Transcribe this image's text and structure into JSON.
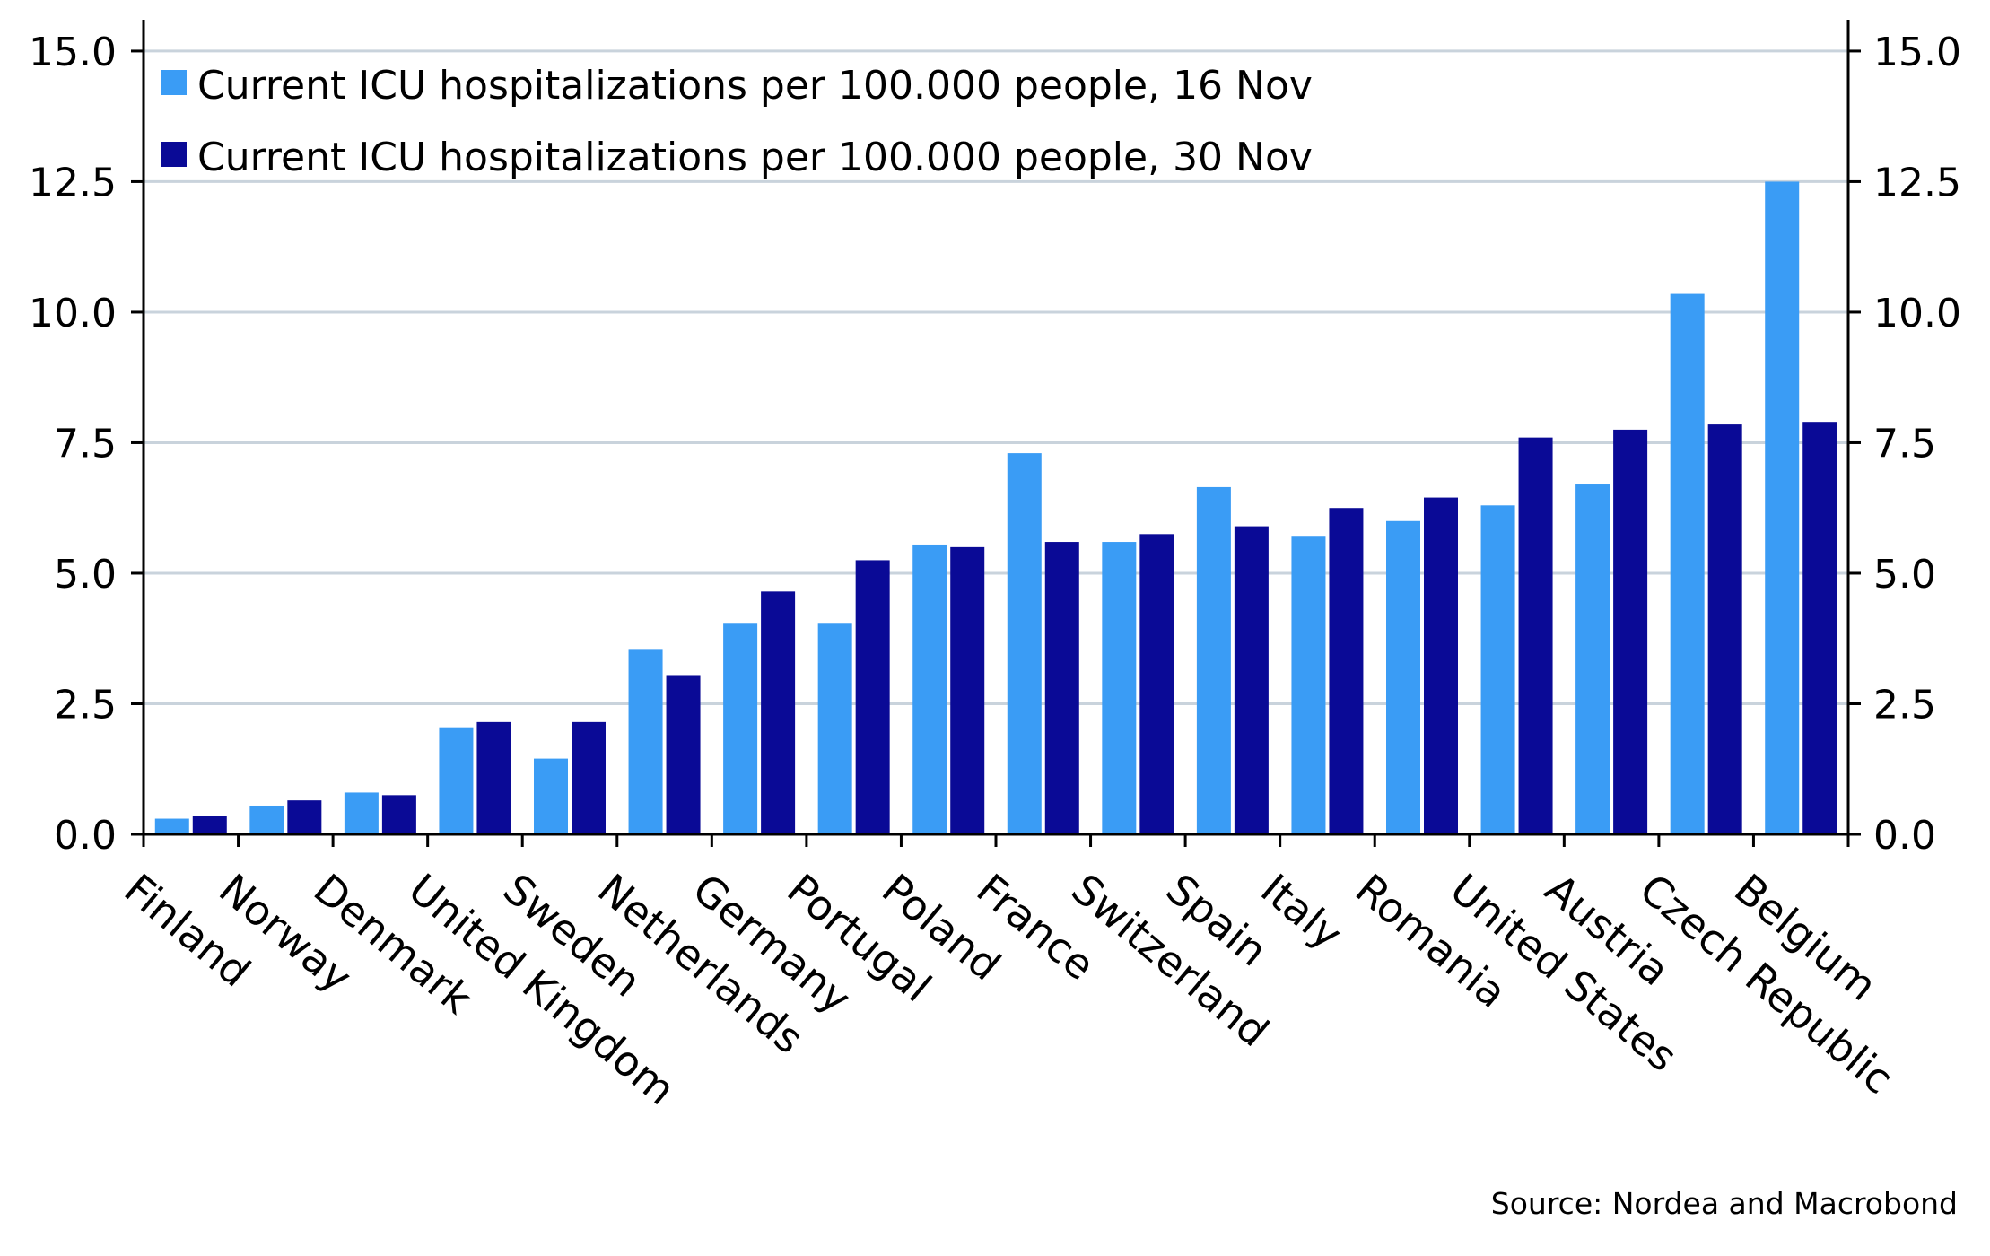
{
  "chart_data": {
    "type": "bar",
    "categories": [
      "Finland",
      "Norway",
      "Denmark",
      "United Kingdom",
      "Sweden",
      "Netherlands",
      "Germany",
      "Portugal",
      "Poland",
      "France",
      "Switzerland",
      "Spain",
      "Italy",
      "Romania",
      "United States",
      "Austria",
      "Czech Republic",
      "Belgium"
    ],
    "series": [
      {
        "name": "Current ICU hospitalizations per 100.000 people, 16 Nov",
        "color": "#3a9cf5",
        "values": [
          0.3,
          0.55,
          0.8,
          2.05,
          1.45,
          3.55,
          4.05,
          4.05,
          5.55,
          7.3,
          5.6,
          6.65,
          5.7,
          6.0,
          6.3,
          6.7,
          10.35,
          12.5
        ]
      },
      {
        "name": "Current ICU hospitalizations per 100.000 people, 30 Nov",
        "color": "#0a0a96",
        "values": [
          0.35,
          0.65,
          0.75,
          2.15,
          2.15,
          3.05,
          4.65,
          5.25,
          5.5,
          5.6,
          5.75,
          5.9,
          6.25,
          6.45,
          7.6,
          7.75,
          7.85,
          7.9
        ]
      }
    ],
    "yticks": [
      "0.0",
      "2.5",
      "5.0",
      "7.5",
      "10.0",
      "12.5",
      "15.0"
    ],
    "ylim": [
      0,
      15.6
    ],
    "grid": true,
    "legend_position": "top-left",
    "secondary_y_axis": true
  },
  "source": "Source: Nordea and Macrobond"
}
